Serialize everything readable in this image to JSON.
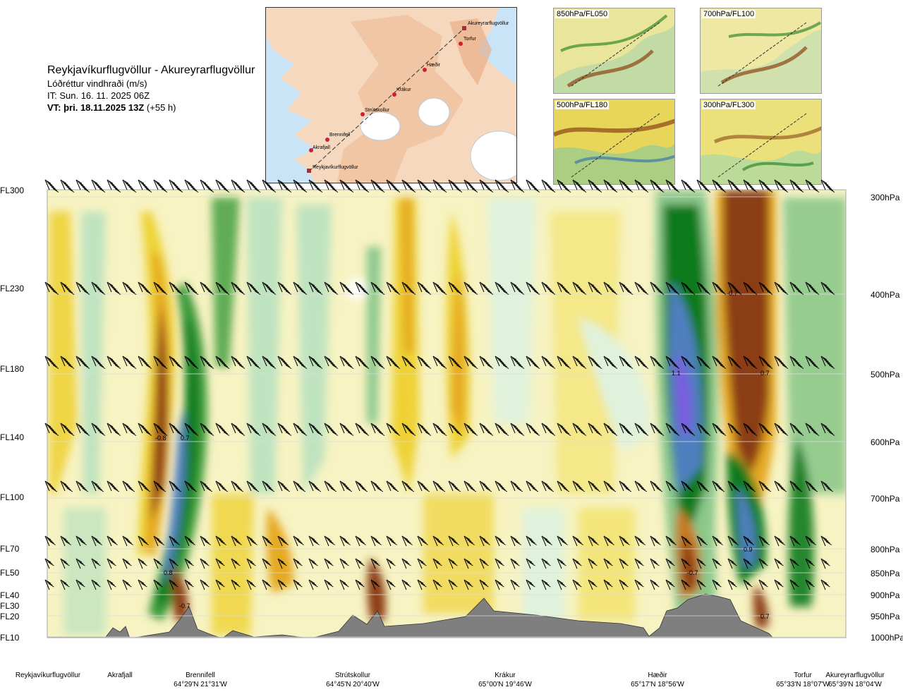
{
  "title": {
    "route": "Reykjavíkurflugvöllur - Akureyrarflugvöllur",
    "variable": "Lóðréttur vindhraði (m/s)",
    "it": "IT: Sun. 16. 11. 2025 06Z",
    "vt_bold": "VT: þri. 18.11.2025 13Z",
    "vt_suffix": " (+55 h)"
  },
  "flight_levels": [
    {
      "label": "FL300",
      "top": 263
    },
    {
      "label": "FL230",
      "top": 402
    },
    {
      "label": "FL180",
      "top": 516
    },
    {
      "label": "FL140",
      "top": 613
    },
    {
      "label": "FL100",
      "top": 698
    },
    {
      "label": "FL70",
      "top": 771
    },
    {
      "label": "FL50",
      "top": 805
    },
    {
      "label": "FL40",
      "top": 837
    },
    {
      "label": "FL30",
      "top": 852
    },
    {
      "label": "FL20",
      "top": 867
    },
    {
      "label": "FL10",
      "top": 897
    }
  ],
  "pressure_levels": [
    {
      "label": "300hPa",
      "top": 273
    },
    {
      "label": "400hPa",
      "top": 411
    },
    {
      "label": "500hPa",
      "top": 524
    },
    {
      "label": "600hPa",
      "top": 620
    },
    {
      "label": "700hPa",
      "top": 700
    },
    {
      "label": "800hPa",
      "top": 772
    },
    {
      "label": "850hPa",
      "top": 806
    },
    {
      "label": "900hPa",
      "top": 837
    },
    {
      "label": "950hPa",
      "top": 867
    },
    {
      "label": "1000hPa",
      "top": 897
    }
  ],
  "locations": [
    {
      "name": "Reykjavíkurflugvöllur",
      "coord": "",
      "cx": 68
    },
    {
      "name": "Akrafjall",
      "coord": "",
      "cx": 170
    },
    {
      "name": "Brennifell",
      "coord": "64°29'N 21°31'W",
      "cx": 284
    },
    {
      "name": "Strútskollur",
      "coord": "64°45'N 20°40'W",
      "cx": 500
    },
    {
      "name": "Krákur",
      "coord": "65°00'N 19°46'W",
      "cx": 716
    },
    {
      "name": "Hæðir",
      "coord": "65°17'N 18°56'W",
      "cx": 932
    },
    {
      "name": "Torfur",
      "coord": "65°33'N 18°07'W",
      "cx": 1138
    },
    {
      "name": "Akureyrarflugvöllur",
      "coord": "65°39'N 18°04'W",
      "cx": 1212
    }
  ],
  "map": {
    "points": [
      "Akureyrarflugvöllur",
      "Torfur",
      "Hæðir",
      "Krákur",
      "Strútskollur",
      "Brennifell",
      "Akrafjall",
      "Reykjavíkurflugvöllur"
    ]
  },
  "mini_maps": [
    {
      "id": "850",
      "label": "850hPa/FL050"
    },
    {
      "id": "700",
      "label": "700hPa/FL100"
    },
    {
      "id": "500",
      "label": "500hPa/FL180"
    },
    {
      "id": "300",
      "label": "300hPa/FL300"
    }
  ],
  "colors": {
    "strong_down": "#7a5be0",
    "down3": "#4f7fbf",
    "down2": "#0f7a1f",
    "down1": "#3a9a3a",
    "down05": "#8cc88c",
    "down02": "#bfe3bf",
    "down01": "#e0f2dc",
    "neutral": "#ffffff",
    "up01": "#f8f1b8",
    "up02": "#f3e57a",
    "up05": "#eed236",
    "up1": "#e5a920",
    "up2": "#c87a1e",
    "up3": "#8b3d15",
    "terrain": "#7f7f7f"
  },
  "chart_data": {
    "type": "heatmap",
    "title": "Lóðréttur vindhraði (m/s)",
    "xlabel": "",
    "ylabel": "",
    "x_locations": [
      "Reykjavíkurflugvöllur",
      "Akrafjall",
      "Brennifell",
      "Strútskollur",
      "Krákur",
      "Hæðir",
      "Torfur",
      "Akureyrarflugvöllur"
    ],
    "y_levels_hpa": [
      300,
      400,
      500,
      600,
      700,
      800,
      850,
      900,
      950,
      1000
    ],
    "annotations": [
      {
        "value": "-0.8",
        "near": "Brennifell",
        "level_hpa": 600
      },
      {
        "value": "0.7",
        "near": "Brennifell",
        "level_hpa": 600
      },
      {
        "value": "0.8",
        "near": "Brennifell",
        "level_hpa": 850
      },
      {
        "value": "-0.7",
        "near": "Brennifell",
        "level_hpa": 930
      },
      {
        "value": "-0.7",
        "near": "Hæðir",
        "level_hpa": 400
      },
      {
        "value": "1.1",
        "near": "Hæðir",
        "level_hpa": 500
      },
      {
        "value": "0.7",
        "near": "Hæðir",
        "level_hpa": 500
      },
      {
        "value": "0.9",
        "near": "Hæðir",
        "level_hpa": 800
      },
      {
        "value": "-0.7",
        "near": "Hæðir",
        "level_hpa": 850
      },
      {
        "value": "0.7",
        "near": "Torfur",
        "level_hpa": 950
      }
    ]
  }
}
